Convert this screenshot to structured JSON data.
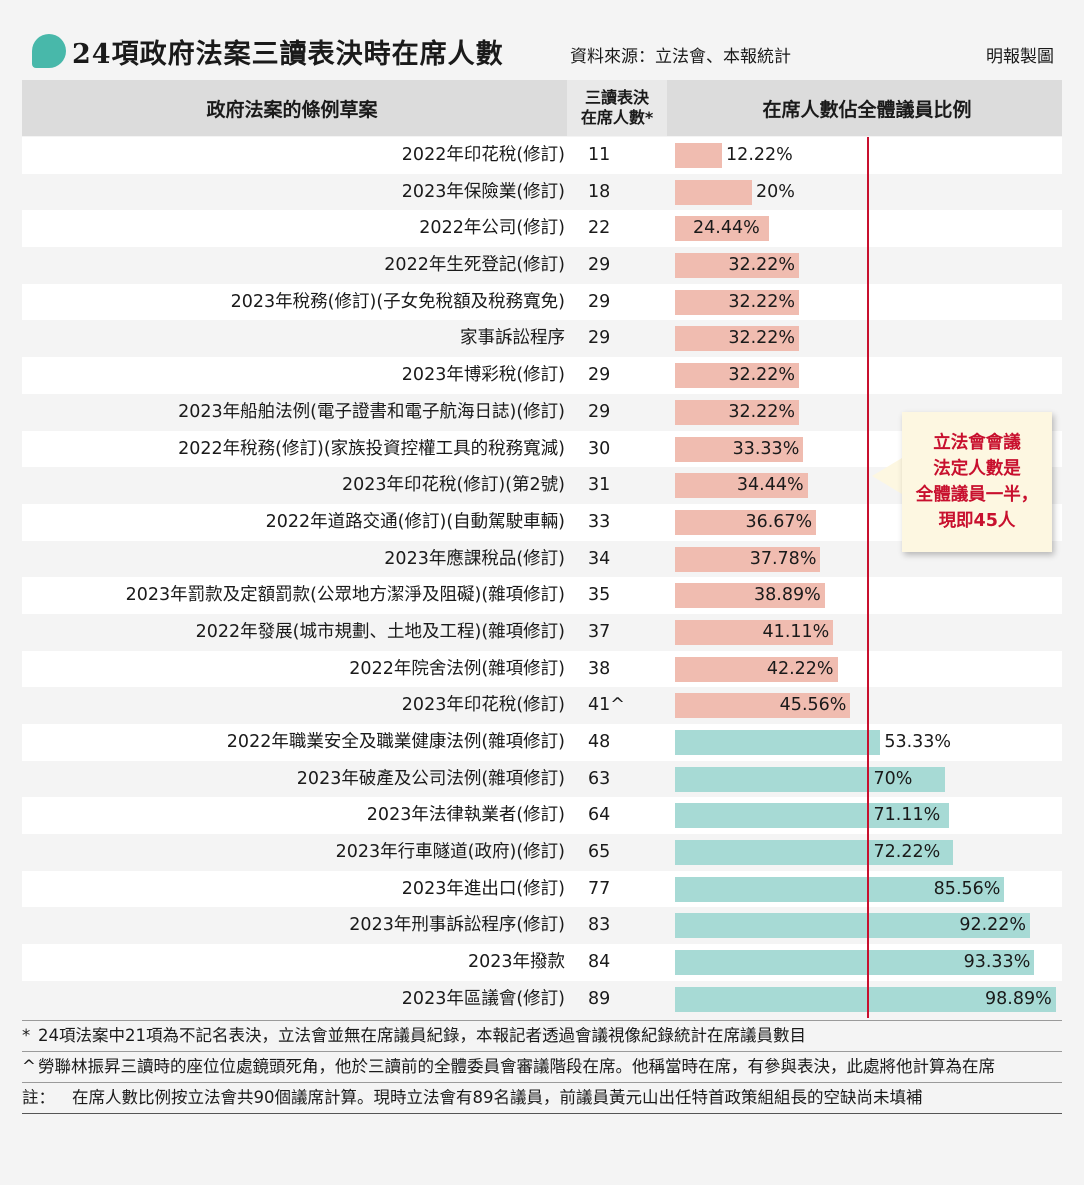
{
  "header": {
    "title": "24項政府法案三讀表決時在席人數",
    "source": "資料來源：立法會、本報統計",
    "credit": "明報製圖"
  },
  "columns": {
    "bill": "政府法案的條例草案",
    "count_line1": "三讀表決",
    "count_line2": "在席人數*",
    "ratio": "在席人數佔全體議員比例"
  },
  "callout": {
    "line1": "立法會會議",
    "line2": "法定人數是",
    "line3": "全體議員一半，",
    "line4": "現即45人"
  },
  "notes": {
    "star_mark": "*",
    "star": "24項法案中21項為不記名表決，立法會並無在席議員紀錄，本報記者透過會議視像紀錄統計在席議員數目",
    "caret_mark": "^",
    "caret": "勞聯林振昇三讀時的座位位處鏡頭死角，他於三讀前的全體委員會審議階段在席。他稱當時在席，有參與表決，此處將他計算為在席",
    "remark_mark": "註：",
    "remark": "在席人數比例按立法會共90個議席計算。現時立法會有89名議員，前議員黃元山出任特首政策組組長的空缺尚未填補"
  },
  "chart_data": {
    "type": "bar",
    "orientation": "horizontal",
    "title": "24項政府法案三讀表決時在席人數",
    "xlim": [
      0,
      100
    ],
    "reference_line": {
      "value": 50,
      "label": "立法會會議法定人數是全體議員一半，現即45人"
    },
    "colors": {
      "below_half": "#f0bcb0",
      "above_half": "#a7dad5",
      "reference": "#c8102e"
    },
    "categories": [
      "2022年印花稅(修訂)",
      "2023年保險業(修訂)",
      "2022年公司(修訂)",
      "2022年生死登記(修訂)",
      "2023年稅務(修訂)(子女免稅額及稅務寬免)",
      "家事訴訟程序",
      "2023年博彩稅(修訂)",
      "2023年船舶法例(電子證書和電子航海日誌)(修訂)",
      "2022年稅務(修訂)(家族投資控權工具的稅務寬減)",
      "2023年印花稅(修訂)(第2號)",
      "2022年道路交通(修訂)(自動駕駛車輛)",
      "2023年應課稅品(修訂)",
      "2023年罰款及定額罰款(公眾地方潔淨及阻礙)(雜項修訂)",
      "2022年發展(城市規劃、土地及工程)(雜項修訂)",
      "2022年院舍法例(雜項修訂)",
      "2023年印花稅(修訂)",
      "2022年職業安全及職業健康法例(雜項修訂)",
      "2023年破產及公司法例(雜項修訂)",
      "2023年法律執業者(修訂)",
      "2023年行車隧道(政府)(修訂)",
      "2023年進出口(修訂)",
      "2023年刑事訴訟程序(修訂)",
      "2023年撥款",
      "2023年區議會(修訂)"
    ],
    "counts": [
      "11",
      "18",
      "22",
      "29",
      "29",
      "29",
      "29",
      "29",
      "30",
      "31",
      "33",
      "34",
      "35",
      "37",
      "38",
      "41^",
      "48",
      "63",
      "64",
      "65",
      "77",
      "83",
      "84",
      "89"
    ],
    "values": [
      12.22,
      20,
      24.44,
      32.22,
      32.22,
      32.22,
      32.22,
      32.22,
      33.33,
      34.44,
      36.67,
      37.78,
      38.89,
      41.11,
      42.22,
      45.56,
      53.33,
      70,
      71.11,
      72.22,
      85.56,
      92.22,
      93.33,
      98.89
    ],
    "labels": [
      "12.22%",
      "20%",
      "24.44%",
      "32.22%",
      "32.22%",
      "32.22%",
      "32.22%",
      "32.22%",
      "33.33%",
      "34.44%",
      "36.67%",
      "37.78%",
      "38.89%",
      "41.11%",
      "42.22%",
      "45.56%",
      "53.33%",
      "70%",
      "71.11%",
      "72.22%",
      "85.56%",
      "92.22%",
      "93.33%",
      "98.89%"
    ]
  }
}
